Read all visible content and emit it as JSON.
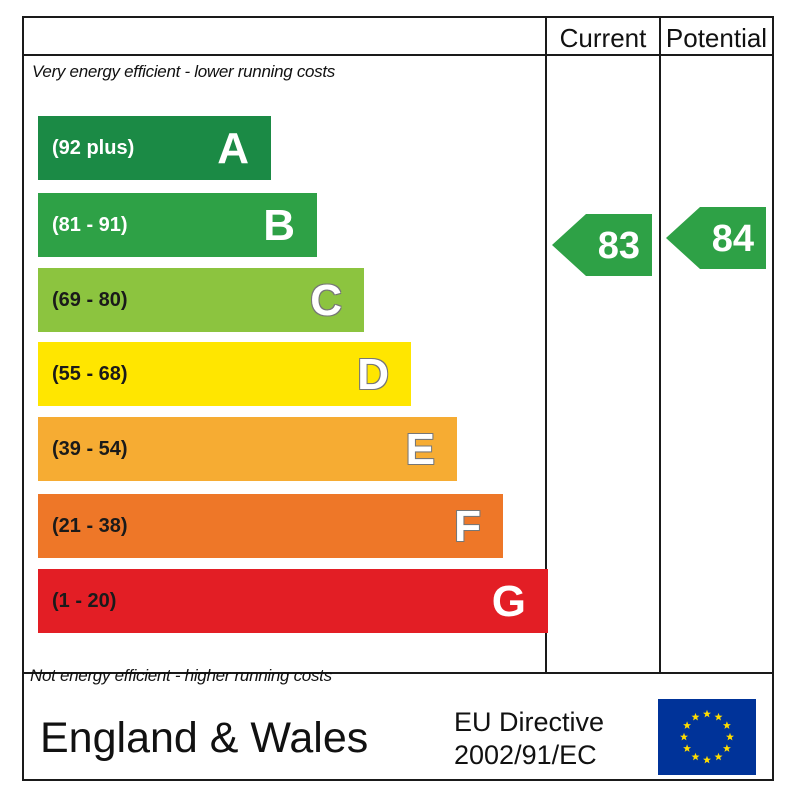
{
  "headers": {
    "current": "Current",
    "potential": "Potential"
  },
  "notes": {
    "top": "Very energy efficient - lower running costs",
    "bottom": "Not energy efficient - higher running costs"
  },
  "footer": {
    "region": "England & Wales",
    "directive_line1": "EU Directive",
    "directive_line2": "2002/91/EC"
  },
  "chart_data": {
    "type": "bar",
    "title": "",
    "bands": [
      {
        "letter": "A",
        "range": "(92 plus)",
        "color": "#1b8a45"
      },
      {
        "letter": "B",
        "range": "(81 - 91)",
        "color": "#2ea146"
      },
      {
        "letter": "C",
        "range": "(69 - 80)",
        "color": "#8cc43f"
      },
      {
        "letter": "D",
        "range": "(55 - 68)",
        "color": "#ffe600"
      },
      {
        "letter": "E",
        "range": "(39 - 54)",
        "color": "#f6ac33"
      },
      {
        "letter": "F",
        "range": "(21 - 38)",
        "color": "#ee7728"
      },
      {
        "letter": "G",
        "range": "(1 - 20)",
        "color": "#e31e25"
      }
    ],
    "ratings": [
      {
        "name": "Current",
        "value": 83,
        "band": "B"
      },
      {
        "name": "Potential",
        "value": 84,
        "band": "B"
      }
    ]
  }
}
